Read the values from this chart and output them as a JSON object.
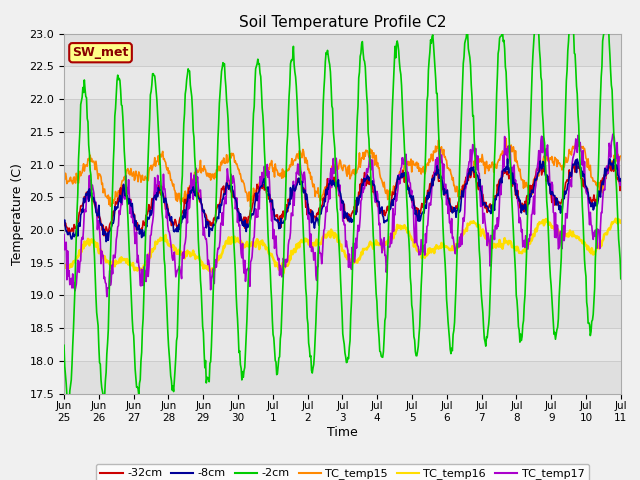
{
  "title": "Soil Temperature Profile C2",
  "xlabel": "Time",
  "ylabel": "Temperature (C)",
  "ylim": [
    17.5,
    23.0
  ],
  "annotation": "SW_met",
  "series": {
    "neg32cm": {
      "label": "-32cm",
      "color": "#cc0000",
      "lw": 1.2
    },
    "neg8cm": {
      "label": "-8cm",
      "color": "#000099",
      "lw": 1.2
    },
    "neg2cm": {
      "label": "-2cm",
      "color": "#00cc00",
      "lw": 1.2
    },
    "tc15": {
      "label": "TC_temp15",
      "color": "#ff8800",
      "lw": 1.2
    },
    "tc16": {
      "label": "TC_temp16",
      "color": "#ffdd00",
      "lw": 1.8
    },
    "tc17": {
      "label": "TC_temp17",
      "color": "#aa00cc",
      "lw": 1.2
    }
  },
  "xtick_labels": [
    "Jun 25",
    "Jun 26",
    "Jun 27",
    "Jun 28",
    "Jun 29",
    "Jun 30",
    "Jul 1",
    "Jul 2",
    "Jul 3",
    "Jul 4",
    "Jul 5",
    "Jul 6",
    "Jul 7",
    "Jul 8",
    "Jul 9",
    "Jul 10",
    "Jul 11"
  ],
  "grid_color": "#cccccc",
  "bg_color": "#e8e8e8",
  "annotation_bg": "#ffff88",
  "annotation_border": "#aa0000",
  "fig_bg": "#f0f0f0"
}
